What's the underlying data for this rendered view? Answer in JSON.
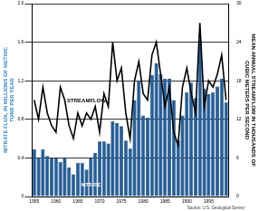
{
  "chart_data": {
    "type": "bar",
    "categories": [
      "1955",
      null,
      null,
      null,
      null,
      "1960",
      null,
      null,
      null,
      null,
      "1965",
      null,
      null,
      null,
      null,
      "1970",
      null,
      null,
      null,
      null,
      "1975",
      null,
      null,
      null,
      null,
      "1980",
      null,
      null,
      null,
      null,
      "1985",
      null,
      null,
      null,
      null,
      "1990",
      null,
      null,
      null,
      null,
      "1995",
      null,
      null,
      null,
      null
    ],
    "series": [
      {
        "name": "NITRATE",
        "type": "bar",
        "color": "#1f5f9e",
        "values": [
          0.49,
          0.4,
          0.49,
          0.42,
          0.4,
          0.4,
          0.36,
          0.4,
          0.3,
          0.23,
          0.35,
          0.35,
          0.28,
          0.4,
          0.45,
          0.57,
          0.57,
          0.55,
          0.78,
          0.76,
          0.73,
          0.58,
          0.5,
          1.0,
          1.2,
          0.84,
          0.82,
          1.26,
          1.38,
          1.27,
          1.22,
          1.22,
          1.0,
          0.58,
          0.84,
          1.08,
          1.18,
          1.02,
          1.62,
          1.12,
          1.06,
          1.08,
          1.14,
          1.22,
          0.98
        ]
      },
      {
        "name": "STREAMFLOW",
        "type": "line",
        "color": "#000000",
        "axis": "y2",
        "values": [
          15,
          12,
          17,
          13,
          11,
          10,
          17,
          15,
          11,
          9,
          13,
          11,
          13,
          12,
          14,
          10,
          16,
          14,
          24,
          18,
          20,
          13,
          9,
          18,
          21,
          16,
          15,
          22,
          24,
          19,
          14,
          17,
          10,
          8,
          17,
          20,
          16,
          13,
          27,
          14,
          18,
          17,
          19,
          22,
          15
        ]
      }
    ],
    "y_label": "NITRATE FLUX, IN MILLIONS OF METRIC TONS PER YEAR",
    "y2_label": "MEAN ANNUAL STREAMFLOW IN THOUSANDS OF CUBIC METERS PER SECOND",
    "ylim": [
      0,
      2
    ],
    "yticks": [
      0,
      0.4,
      0.8,
      1.2,
      1.6,
      {
        "value": 2,
        "label": "2.0"
      }
    ],
    "y2lim": [
      0,
      30
    ],
    "y2ticks": [
      0,
      6,
      12,
      18,
      24,
      30
    ],
    "grid": true,
    "annotations": [
      "Source: U.S. Geological Survey"
    ]
  }
}
